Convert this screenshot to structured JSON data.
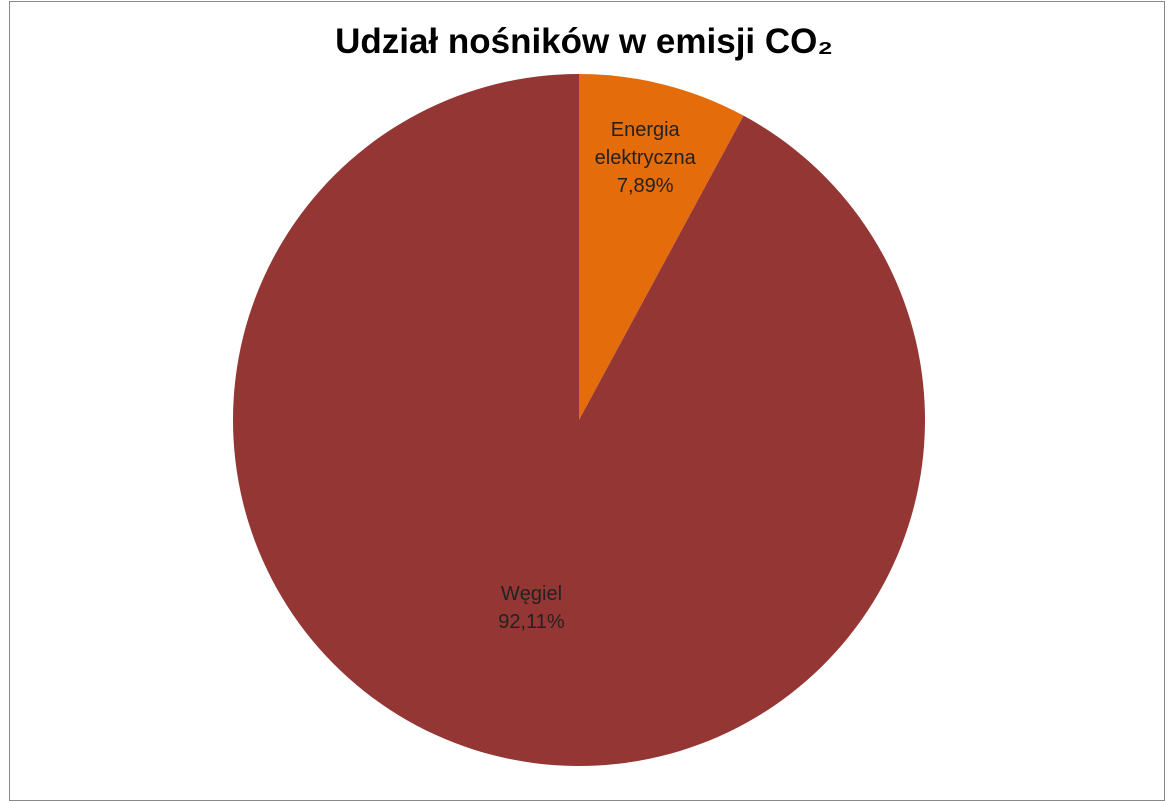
{
  "chart_data": {
    "type": "pie",
    "title": "Udział nośników w emisji CO₂",
    "categories": [
      "Energia elektryczna",
      "Węgiel"
    ],
    "values": [
      7.89,
      92.11
    ],
    "value_labels": [
      "7,89%",
      "92,11%"
    ],
    "colors": [
      "#e46c0a",
      "#943634"
    ]
  }
}
